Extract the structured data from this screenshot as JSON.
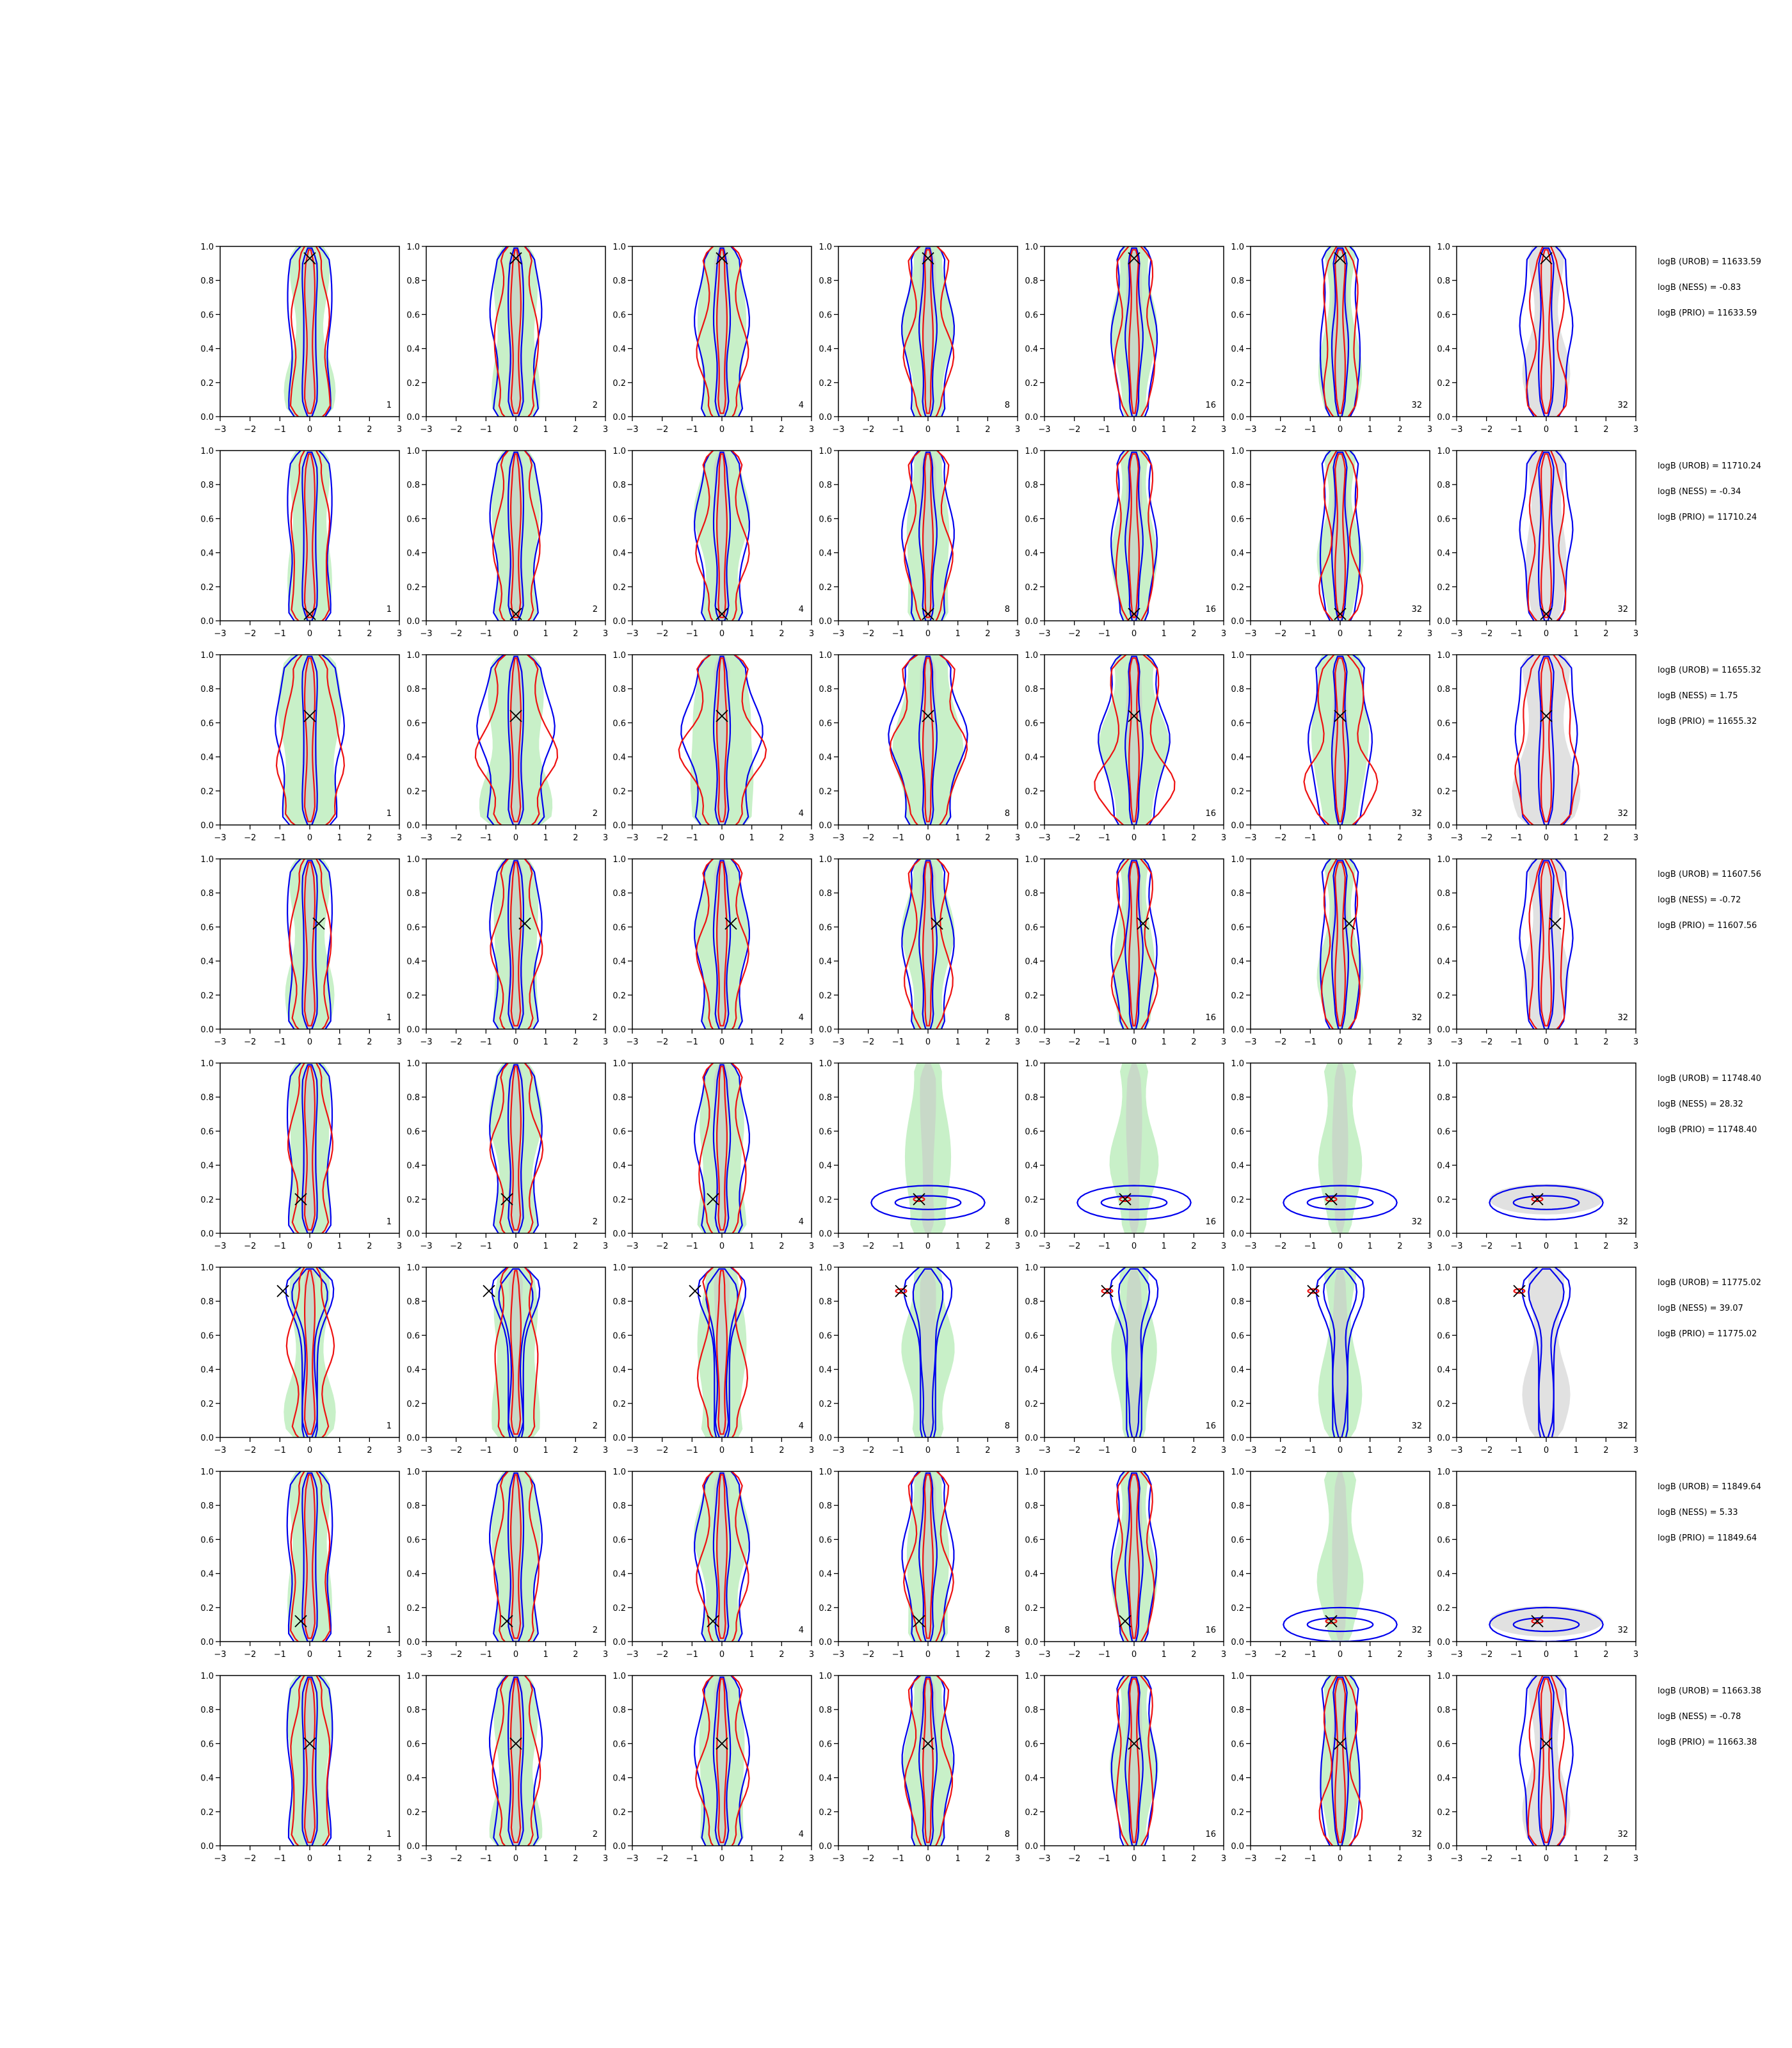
{
  "chart_data": {
    "type": "grid-of-2d-density-contour-plots",
    "rows": 8,
    "cols": 7,
    "xlim": [
      -3,
      3
    ],
    "ylim": [
      0.0,
      1.0
    ],
    "xticks": [
      "−3",
      "−2",
      "−1",
      "0",
      "1",
      "2",
      "3"
    ],
    "yticks": [
      "0.0",
      "0.2",
      "0.4",
      "0.6",
      "0.8",
      "1.0"
    ],
    "panel_labels": [
      "1",
      "2",
      "4",
      "8",
      "16",
      "32",
      "32"
    ],
    "colors": {
      "reference_fill_last_column": "#dcdcdc",
      "reference_fill": "#c8f0c8",
      "blue_contours": "#0000ee",
      "red_contours": "#ee1111",
      "true_marker": "#000000"
    },
    "rows_data": [
      {
        "marker": {
          "x": 0.0,
          "y": 0.93
        },
        "shape": "narrow",
        "ann": [
          "logB (UROB) = 11633.59",
          "logB (NESS) = -0.83",
          "logB (PRIO) = 11633.59"
        ]
      },
      {
        "marker": {
          "x": 0.0,
          "y": 0.04
        },
        "shape": "narrow",
        "ann": [
          "logB (UROB) = 11710.24",
          "logB (NESS) = -0.34",
          "logB (PRIO) = 11710.24"
        ]
      },
      {
        "marker": {
          "x": 0.0,
          "y": 0.64
        },
        "shape": "wide",
        "ann": [
          "logB (UROB) = 11655.32",
          "logB (NESS) = 1.75",
          "logB (PRIO) = 11655.32"
        ]
      },
      {
        "marker": {
          "x": 0.3,
          "y": 0.62
        },
        "shape": "narrow",
        "ann": [
          "logB (UROB) = 11607.56",
          "logB (NESS) = -0.72",
          "logB (PRIO) = 11607.56"
        ]
      },
      {
        "marker": {
          "x": -0.3,
          "y": 0.2
        },
        "shape": "collapse",
        "collapse_from_col": 3,
        "ann": [
          "logB (UROB) = 11748.40",
          "logB (NESS) = 28.32",
          "logB (PRIO) = 11748.40"
        ]
      },
      {
        "marker": {
          "x": -0.9,
          "y": 0.86
        },
        "shape": "top",
        "ann": [
          "logB (UROB) = 11775.02",
          "logB (NESS) = 39.07",
          "logB (PRIO) = 11775.02"
        ]
      },
      {
        "marker": {
          "x": -0.3,
          "y": 0.12
        },
        "shape": "collapse",
        "collapse_from_col": 5,
        "ann": [
          "logB (UROB) = 11849.64",
          "logB (NESS) = 5.33",
          "logB (PRIO) = 11849.64"
        ]
      },
      {
        "marker": {
          "x": 0.0,
          "y": 0.6
        },
        "shape": "narrow",
        "ann": [
          "logB (UROB) = 11663.38",
          "logB (NESS) = -0.78",
          "logB (PRIO) = 11663.38"
        ]
      }
    ]
  }
}
